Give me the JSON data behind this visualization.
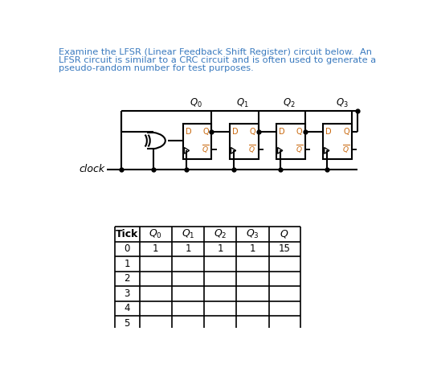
{
  "bg_color": "#ffffff",
  "title_lines": [
    "Examine the LFSR (Linear Feedback Shift Register) circuit below.  An",
    "LFSR circuit is similar to a CRC circuit and is often used to generate a",
    "pseudo-random number for test purposes."
  ],
  "title_color": "#3a7abf",
  "title_fontsize": 8.2,
  "clock_label": "clock",
  "clock_color": "#000000",
  "circuit_color": "#000000",
  "orange_color": "#c8660a",
  "ff_label_d": "D",
  "ff_label_q": "Q",
  "q_labels": [
    "Q_0",
    "Q_1",
    "Q_2",
    "Q_3"
  ],
  "table_headers": [
    "Tick",
    "Q_0",
    "Q_1",
    "Q_2",
    "Q_3",
    "Q"
  ],
  "table_row0": [
    "0",
    "1",
    "1",
    "1",
    "1",
    "15"
  ],
  "table_empty_ticks": [
    "1",
    "2",
    "3",
    "4",
    "5"
  ],
  "table_fontsize": 8.5,
  "table_header_fontsize": 9
}
